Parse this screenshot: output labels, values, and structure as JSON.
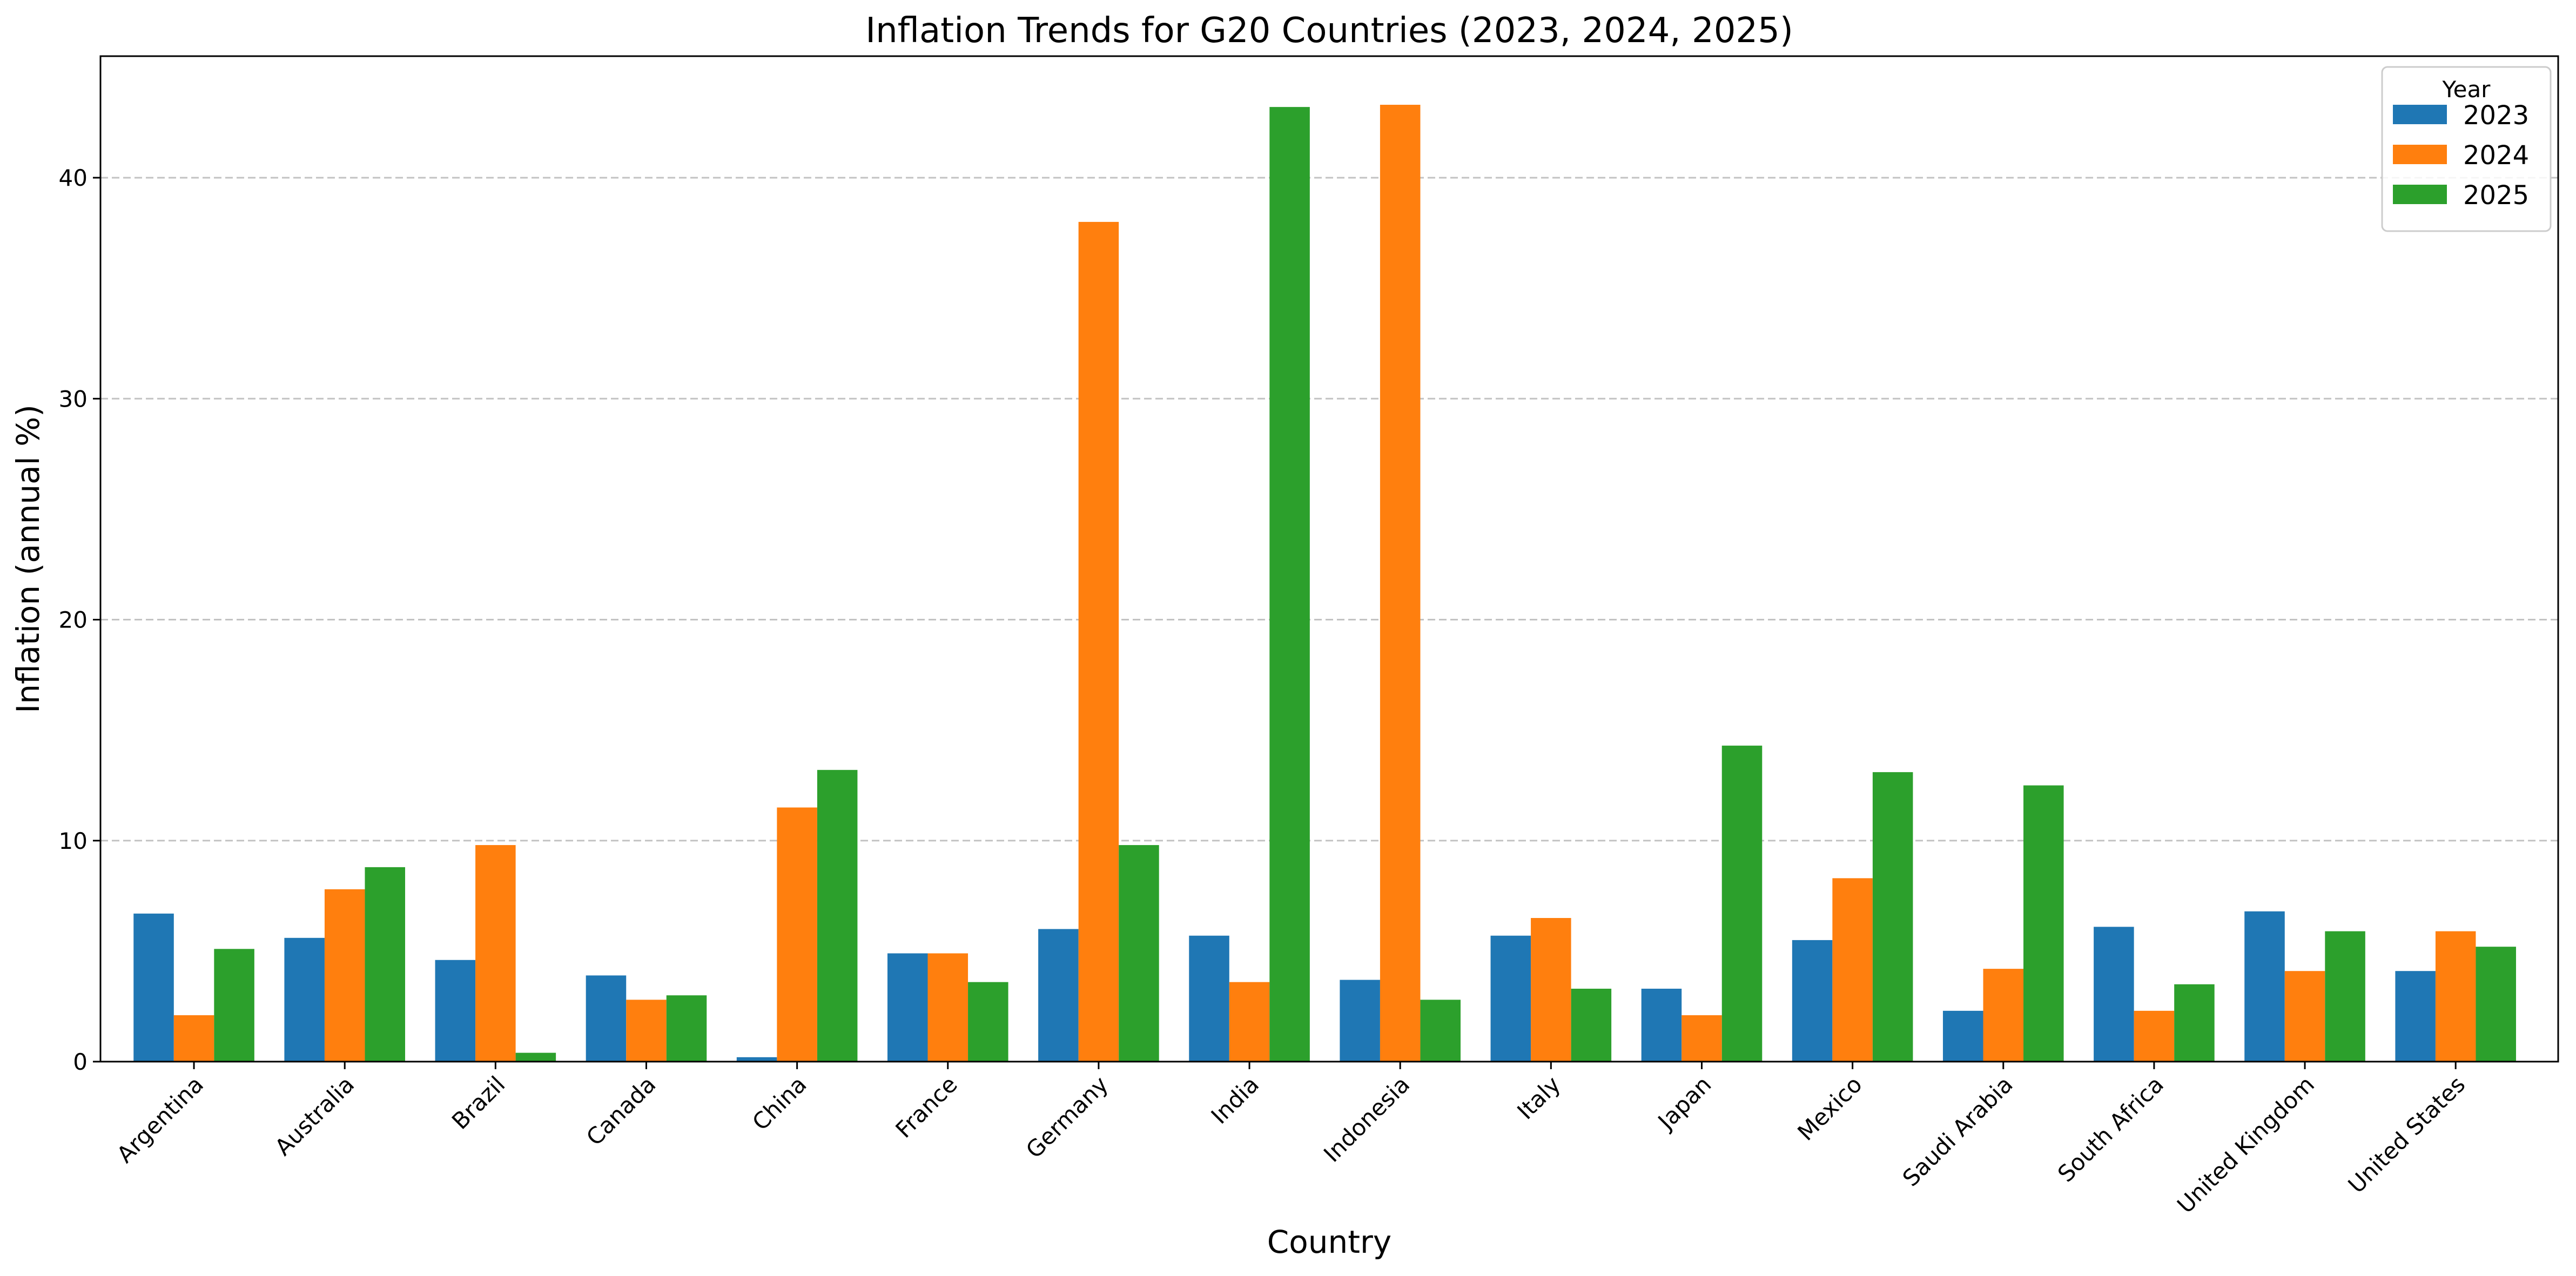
{
  "chart_data": {
    "type": "bar",
    "title": "Inflation Trends for G20 Countries (2023, 2024, 2025)",
    "xlabel": "Country",
    "ylabel": "Inflation (annual %)",
    "ylim": [
      0,
      45.5
    ],
    "yticks": [
      0,
      10,
      20,
      30,
      40
    ],
    "grid": "y-dashed",
    "legend": {
      "title": "Year",
      "placement": "top-right"
    },
    "categories": [
      "Argentina",
      "Australia",
      "Brazil",
      "Canada",
      "China",
      "France",
      "Germany",
      "India",
      "Indonesia",
      "Italy",
      "Japan",
      "Mexico",
      "Saudi Arabia",
      "South Africa",
      "United Kingdom",
      "United States"
    ],
    "series": [
      {
        "name": "2023",
        "color": "#1f77b4",
        "values": [
          6.7,
          5.6,
          4.6,
          3.9,
          0.2,
          4.9,
          6.0,
          5.7,
          3.7,
          5.7,
          3.3,
          5.5,
          2.3,
          6.1,
          6.8,
          4.1
        ]
      },
      {
        "name": "2024",
        "color": "#ff7f0e",
        "values": [
          2.1,
          7.8,
          9.8,
          2.8,
          11.5,
          4.9,
          38.0,
          3.6,
          43.3,
          6.5,
          2.1,
          8.3,
          4.2,
          2.3,
          4.1,
          5.9
        ]
      },
      {
        "name": "2025",
        "color": "#2ca02c",
        "values": [
          5.1,
          8.8,
          0.4,
          3.0,
          13.2,
          3.6,
          9.8,
          43.2,
          2.8,
          3.3,
          14.3,
          13.1,
          12.5,
          3.5,
          5.9,
          5.2
        ]
      }
    ]
  }
}
